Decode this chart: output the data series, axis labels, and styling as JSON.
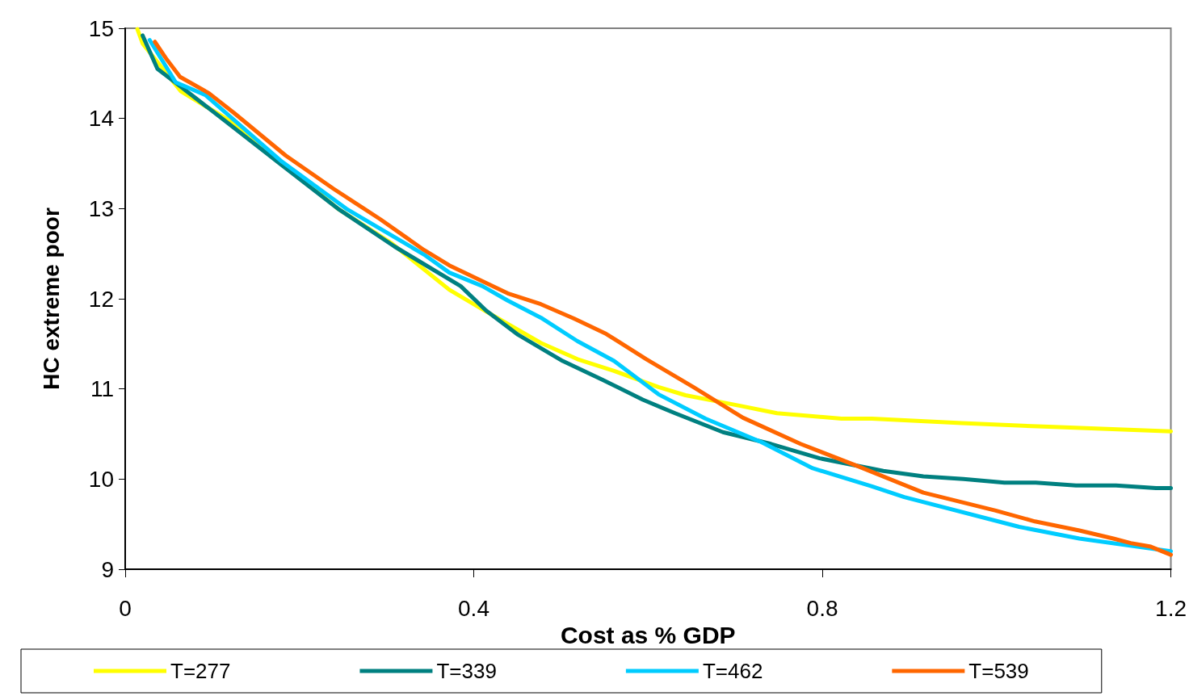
{
  "chart_data": {
    "type": "line",
    "xlabel": "Cost as % GDP",
    "ylabel": "HC extreme poor",
    "xlim": [
      0,
      1.2
    ],
    "xticks": [
      0,
      0.4,
      0.8,
      1.2
    ],
    "ylim": [
      9,
      15
    ],
    "yticks": [
      9,
      10,
      11,
      12,
      13,
      14,
      15
    ],
    "grid": false,
    "legend": "bottom",
    "marker": "none",
    "line_style": "solid",
    "series": [
      {
        "name": "T=277",
        "color": "#ffff00",
        "x": [
          0.014,
          0.02,
          0.064,
          0.124,
          0.244,
          0.305,
          0.372,
          0.414,
          0.477,
          0.519,
          0.561,
          0.612,
          0.643,
          0.707,
          0.748,
          0.822,
          0.857,
          0.96,
          1.06,
          1.2
        ],
        "values": [
          14.99,
          14.83,
          14.3,
          13.95,
          13.0,
          12.62,
          12.1,
          11.86,
          11.51,
          11.33,
          11.2,
          11.02,
          10.93,
          10.81,
          10.73,
          10.67,
          10.67,
          10.62,
          10.58,
          10.53
        ]
      },
      {
        "name": "T=339",
        "color": "#008080",
        "x": [
          0.02,
          0.037,
          0.064,
          0.115,
          0.18,
          0.244,
          0.309,
          0.385,
          0.414,
          0.451,
          0.502,
          0.548,
          0.594,
          0.631,
          0.686,
          0.741,
          0.797,
          0.87,
          0.916,
          0.962,
          1.009,
          1.045,
          1.091,
          1.137,
          1.183,
          1.2
        ],
        "values": [
          14.92,
          14.55,
          14.35,
          13.97,
          13.48,
          13.0,
          12.58,
          12.14,
          11.87,
          11.6,
          11.31,
          11.1,
          10.88,
          10.73,
          10.52,
          10.39,
          10.23,
          10.09,
          10.03,
          10.0,
          9.96,
          9.96,
          9.93,
          9.93,
          9.9,
          9.9
        ]
      },
      {
        "name": "T=462",
        "color": "#00ccff",
        "x": [
          0.028,
          0.058,
          0.092,
          0.18,
          0.255,
          0.343,
          0.372,
          0.41,
          0.439,
          0.477,
          0.519,
          0.561,
          0.612,
          0.666,
          0.73,
          0.789,
          0.857,
          0.894,
          1.026,
          1.095,
          1.2
        ],
        "values": [
          14.87,
          14.4,
          14.26,
          13.52,
          12.99,
          12.49,
          12.29,
          12.14,
          11.98,
          11.79,
          11.53,
          11.31,
          10.94,
          10.67,
          10.41,
          10.12,
          9.92,
          9.8,
          9.47,
          9.34,
          9.2
        ]
      },
      {
        "name": "T=539",
        "color": "#ff6600",
        "x": [
          0.034,
          0.048,
          0.063,
          0.096,
          0.125,
          0.184,
          0.239,
          0.293,
          0.343,
          0.372,
          0.439,
          0.477,
          0.515,
          0.552,
          0.598,
          0.652,
          0.709,
          0.775,
          0.839,
          0.916,
          0.999,
          1.044,
          1.095,
          1.134,
          1.154,
          1.177,
          1.2
        ],
        "values": [
          14.85,
          14.65,
          14.46,
          14.28,
          14.06,
          13.59,
          13.22,
          12.88,
          12.54,
          12.37,
          12.06,
          11.94,
          11.78,
          11.61,
          11.33,
          11.02,
          10.68,
          10.39,
          10.15,
          9.85,
          9.65,
          9.53,
          9.43,
          9.34,
          9.29,
          9.25,
          9.16
        ]
      }
    ]
  }
}
